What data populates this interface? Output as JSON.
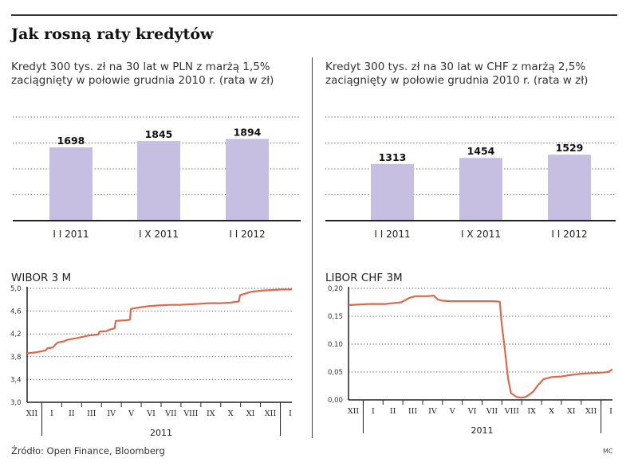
{
  "title": "Jak rosną raty kredytów",
  "source": "Źródło: Open Finance, Bloomberg",
  "credit": "MC",
  "chart_data": [
    {
      "type": "bar",
      "title": "Kredyt 300 tys. zł na 30 lat w PLN z marżą 1,5% zaciągnięty w połowie grudnia 2010 r. (rata w zł)",
      "title_lines": [
        "Kredyt 300 tys. zł na 30 lat w PLN z marżą 1,5%",
        "zaciągnięty w połowie grudnia 2010 r. (rata w zł)"
      ],
      "categories": [
        "I I 2011",
        "I X 2011",
        "I I 2012"
      ],
      "values": [
        1698,
        1845,
        1894
      ],
      "ylim": [
        0,
        2400
      ],
      "bar_color": "#c7bfe1"
    },
    {
      "type": "bar",
      "title": "Kredyt 300 tys. zł na 30 lat w CHF z marżą 2,5% zaciągnięty w połowie grudnia 2010 r. (rata w zł)",
      "title_lines": [
        "Kredyt 300 tys. zł na 30 lat w CHF z marżą 2,5%",
        "zaciągnięty w połowie grudnia 2010 r. (rata w zł)"
      ],
      "categories": [
        "I I 2011",
        "I X 2011",
        "I I 2012"
      ],
      "values": [
        1313,
        1454,
        1529
      ],
      "ylim": [
        0,
        2400
      ],
      "bar_color": "#c7bfe1"
    },
    {
      "type": "line",
      "title": "WIBOR 3 M",
      "yticks": [
        "3,0",
        "3,4",
        "3,8",
        "4,2",
        "4,6",
        "5,0"
      ],
      "ylim": [
        3.0,
        5.0
      ],
      "xlim": [
        0,
        13
      ],
      "months": [
        "XII",
        "I",
        "II",
        "III",
        "IV",
        "V",
        "VI",
        "VII",
        "VIII",
        "IX",
        "X",
        "XI",
        "XII",
        "I"
      ],
      "year_label": "2011",
      "series": [
        {
          "name": "WIBOR 3M",
          "color": "#d9694f",
          "x": [
            0,
            0.5,
            0.9,
            1.0,
            1.25,
            1.5,
            1.8,
            2.0,
            2.5,
            3.0,
            3.5,
            3.55,
            3.9,
            4.0,
            4.3,
            4.35,
            4.9,
            5.05,
            5.1,
            5.6,
            6.0,
            6.5,
            7.0,
            7.5,
            8.0,
            8.5,
            9.0,
            9.5,
            10.0,
            10.4,
            10.45,
            11.0,
            11.5,
            12.0,
            12.5,
            13.0
          ],
          "y": [
            3.86,
            3.88,
            3.91,
            3.95,
            3.96,
            4.05,
            4.07,
            4.1,
            4.13,
            4.17,
            4.19,
            4.24,
            4.25,
            4.27,
            4.3,
            4.43,
            4.44,
            4.45,
            4.64,
            4.67,
            4.69,
            4.7,
            4.71,
            4.71,
            4.72,
            4.73,
            4.74,
            4.74,
            4.75,
            4.77,
            4.88,
            4.94,
            4.96,
            4.97,
            4.98,
            4.98
          ]
        }
      ]
    },
    {
      "type": "line",
      "title": "LIBOR CHF 3M",
      "yticks": [
        "0,00",
        "0,05",
        "0,10",
        "0,15",
        "0,20"
      ],
      "ylim": [
        0.0,
        0.2
      ],
      "xlim": [
        0,
        13
      ],
      "months": [
        "XII",
        "I",
        "II",
        "III",
        "IV",
        "V",
        "VI",
        "VII",
        "VIII",
        "IX",
        "X",
        "XI",
        "XII",
        "I"
      ],
      "year_label": "2011",
      "series": [
        {
          "name": "LIBOR CHF 3M",
          "color": "#d9694f",
          "x": [
            0,
            1.0,
            1.8,
            2.6,
            3.0,
            3.3,
            3.6,
            3.9,
            4.2,
            4.4,
            4.6,
            5.0,
            5.5,
            6.0,
            6.5,
            7.0,
            7.2,
            7.45,
            7.55,
            7.7,
            7.85,
            8.0,
            8.3,
            8.5,
            8.7,
            8.85,
            9.1,
            9.3,
            9.6,
            10.0,
            10.5,
            11.0,
            11.5,
            12.0,
            12.5,
            12.8,
            13.0
          ],
          "y": [
            0.17,
            0.172,
            0.172,
            0.175,
            0.183,
            0.186,
            0.186,
            0.186,
            0.187,
            0.18,
            0.178,
            0.177,
            0.177,
            0.177,
            0.177,
            0.177,
            0.177,
            0.176,
            0.135,
            0.09,
            0.04,
            0.012,
            0.005,
            0.004,
            0.005,
            0.008,
            0.015,
            0.025,
            0.037,
            0.041,
            0.042,
            0.045,
            0.047,
            0.048,
            0.049,
            0.05,
            0.055
          ]
        }
      ]
    }
  ]
}
